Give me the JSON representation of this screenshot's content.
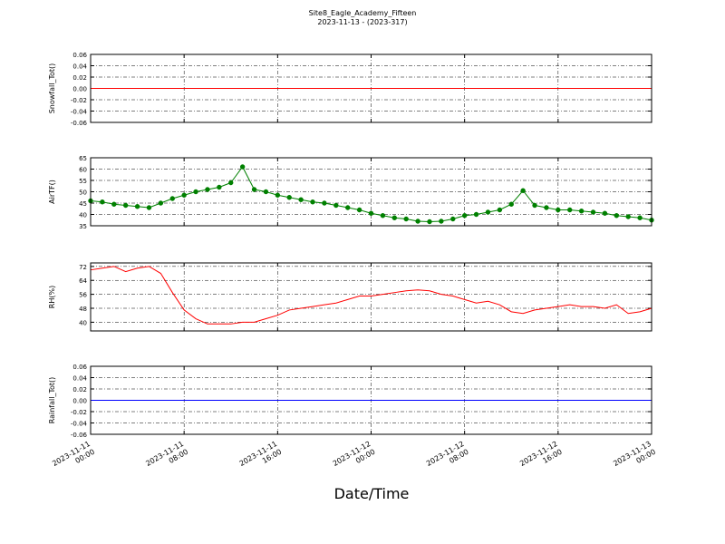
{
  "figure": {
    "title": "Site8_Eagle_Academy_Fifteen",
    "subtitle": "2023-11-13 - (2023-317)",
    "xlabel": "Date/Time"
  },
  "chart_data": [
    {
      "type": "line",
      "ylabel": "Snowfall_Tot()",
      "x": [
        "2023-11-11 00:00",
        "2023-11-13 00:00"
      ],
      "series": [
        {
          "color": "#ff0000",
          "values": [
            0,
            0
          ]
        }
      ],
      "xlim": [
        "2023-11-11 00:00",
        "2023-11-13 00:00"
      ],
      "xticks": [
        "2023-11-11 00:00",
        "2023-11-11 08:00",
        "2023-11-11 16:00",
        "2023-11-12 00:00",
        "2023-11-12 08:00",
        "2023-11-12 16:00",
        "2023-11-13 00:00"
      ],
      "ylim": [
        -0.06,
        0.06
      ],
      "yticks": [
        -0.06,
        -0.04,
        -0.02,
        {
          "value": 0,
          "label": "0.00"
        },
        0.02,
        0.04,
        0.06
      ],
      "grid": true
    },
    {
      "type": "line",
      "ylabel": "AirTF()",
      "x": [
        "2023-11-11 00:00",
        "2023-11-11 01:00",
        "2023-11-11 02:00",
        "2023-11-11 03:00",
        "2023-11-11 04:00",
        "2023-11-11 05:00",
        "2023-11-11 06:00",
        "2023-11-11 07:00",
        "2023-11-11 08:00",
        "2023-11-11 09:00",
        "2023-11-11 10:00",
        "2023-11-11 11:00",
        "2023-11-11 12:00",
        "2023-11-11 13:00",
        "2023-11-11 14:00",
        "2023-11-11 15:00",
        "2023-11-11 16:00",
        "2023-11-11 17:00",
        "2023-11-11 18:00",
        "2023-11-11 19:00",
        "2023-11-11 20:00",
        "2023-11-11 21:00",
        "2023-11-11 22:00",
        "2023-11-11 23:00",
        "2023-11-12 00:00",
        "2023-11-12 01:00",
        "2023-11-12 02:00",
        "2023-11-12 03:00",
        "2023-11-12 04:00",
        "2023-11-12 05:00",
        "2023-11-12 06:00",
        "2023-11-12 07:00",
        "2023-11-12 08:00",
        "2023-11-12 09:00",
        "2023-11-12 10:00",
        "2023-11-12 11:00",
        "2023-11-12 12:00",
        "2023-11-12 13:00",
        "2023-11-12 14:00",
        "2023-11-12 15:00",
        "2023-11-12 16:00",
        "2023-11-12 17:00",
        "2023-11-12 18:00",
        "2023-11-12 19:00",
        "2023-11-12 20:00",
        "2023-11-12 21:00",
        "2023-11-12 22:00",
        "2023-11-12 23:00",
        "2023-11-13 00:00"
      ],
      "series": [
        {
          "color": "#008000",
          "markers": true,
          "values": [
            46,
            45.5,
            44.5,
            44,
            43.5,
            43,
            45,
            47,
            48.5,
            50,
            51,
            52,
            54,
            61,
            51,
            50,
            48.5,
            47.5,
            46.5,
            45.5,
            45,
            44,
            43,
            42,
            40.5,
            39.5,
            38.5,
            38,
            37,
            36.8,
            37,
            38,
            39.5,
            40,
            41,
            42,
            44.5,
            50.5,
            44,
            43,
            42,
            42,
            41.5,
            41,
            40.5,
            39.5,
            39,
            38.5,
            37.5
          ]
        }
      ],
      "xlim": [
        "2023-11-11 00:00",
        "2023-11-13 00:00"
      ],
      "xticks": [
        "2023-11-11 00:00",
        "2023-11-11 08:00",
        "2023-11-11 16:00",
        "2023-11-12 00:00",
        "2023-11-12 08:00",
        "2023-11-12 16:00",
        "2023-11-13 00:00"
      ],
      "ylim": [
        35,
        65
      ],
      "yticks": [
        35,
        40,
        45,
        50,
        55,
        60,
        65
      ],
      "grid": true
    },
    {
      "type": "line",
      "ylabel": "RH(%)",
      "x": [
        "2023-11-11 00:00",
        "2023-11-11 01:00",
        "2023-11-11 02:00",
        "2023-11-11 03:00",
        "2023-11-11 04:00",
        "2023-11-11 05:00",
        "2023-11-11 06:00",
        "2023-11-11 07:00",
        "2023-11-11 08:00",
        "2023-11-11 09:00",
        "2023-11-11 10:00",
        "2023-11-11 11:00",
        "2023-11-11 12:00",
        "2023-11-11 13:00",
        "2023-11-11 14:00",
        "2023-11-11 15:00",
        "2023-11-11 16:00",
        "2023-11-11 17:00",
        "2023-11-11 18:00",
        "2023-11-11 19:00",
        "2023-11-11 20:00",
        "2023-11-11 21:00",
        "2023-11-11 22:00",
        "2023-11-11 23:00",
        "2023-11-12 00:00",
        "2023-11-12 01:00",
        "2023-11-12 02:00",
        "2023-11-12 03:00",
        "2023-11-12 04:00",
        "2023-11-12 05:00",
        "2023-11-12 06:00",
        "2023-11-12 07:00",
        "2023-11-12 08:00",
        "2023-11-12 09:00",
        "2023-11-12 10:00",
        "2023-11-12 11:00",
        "2023-11-12 12:00",
        "2023-11-12 13:00",
        "2023-11-12 14:00",
        "2023-11-12 15:00",
        "2023-11-12 16:00",
        "2023-11-12 17:00",
        "2023-11-12 18:00",
        "2023-11-12 19:00",
        "2023-11-12 20:00",
        "2023-11-12 21:00",
        "2023-11-12 22:00",
        "2023-11-12 23:00",
        "2023-11-13 00:00"
      ],
      "series": [
        {
          "color": "#ff0000",
          "values": [
            70,
            71,
            72,
            69,
            71,
            72,
            68,
            57,
            47,
            42,
            39,
            39,
            39,
            40,
            40,
            42,
            44,
            47,
            48,
            49,
            50,
            51,
            53,
            55,
            55,
            56,
            57,
            58,
            58.5,
            58,
            56,
            55,
            53,
            51,
            52,
            50,
            46,
            45,
            47,
            48,
            49,
            50,
            49,
            49,
            48,
            50,
            45,
            46,
            48
          ]
        }
      ],
      "xlim": [
        "2023-11-11 00:00",
        "2023-11-13 00:00"
      ],
      "xticks": [
        "2023-11-11 00:00",
        "2023-11-11 08:00",
        "2023-11-11 16:00",
        "2023-11-12 00:00",
        "2023-11-12 08:00",
        "2023-11-12 16:00",
        "2023-11-13 00:00"
      ],
      "ylim": [
        35,
        74
      ],
      "yticks": [
        40,
        48,
        56,
        64,
        72
      ],
      "grid": true
    },
    {
      "type": "line",
      "ylabel": "Rainfall_Tot()",
      "x": [
        "2023-11-11 00:00",
        "2023-11-13 00:00"
      ],
      "series": [
        {
          "color": "#0000ff",
          "values": [
            0,
            0
          ]
        }
      ],
      "xlim": [
        "2023-11-11 00:00",
        "2023-11-13 00:00"
      ],
      "xticks": [
        "2023-11-11 00:00",
        "2023-11-11 08:00",
        "2023-11-11 16:00",
        "2023-11-12 00:00",
        "2023-11-12 08:00",
        "2023-11-12 16:00",
        "2023-11-13 00:00"
      ],
      "ylim": [
        -0.06,
        0.06
      ],
      "yticks": [
        -0.06,
        -0.04,
        -0.02,
        {
          "value": 0,
          "label": "0.00"
        },
        0.02,
        0.04,
        0.06
      ],
      "grid": true,
      "xticklabels": true
    }
  ]
}
